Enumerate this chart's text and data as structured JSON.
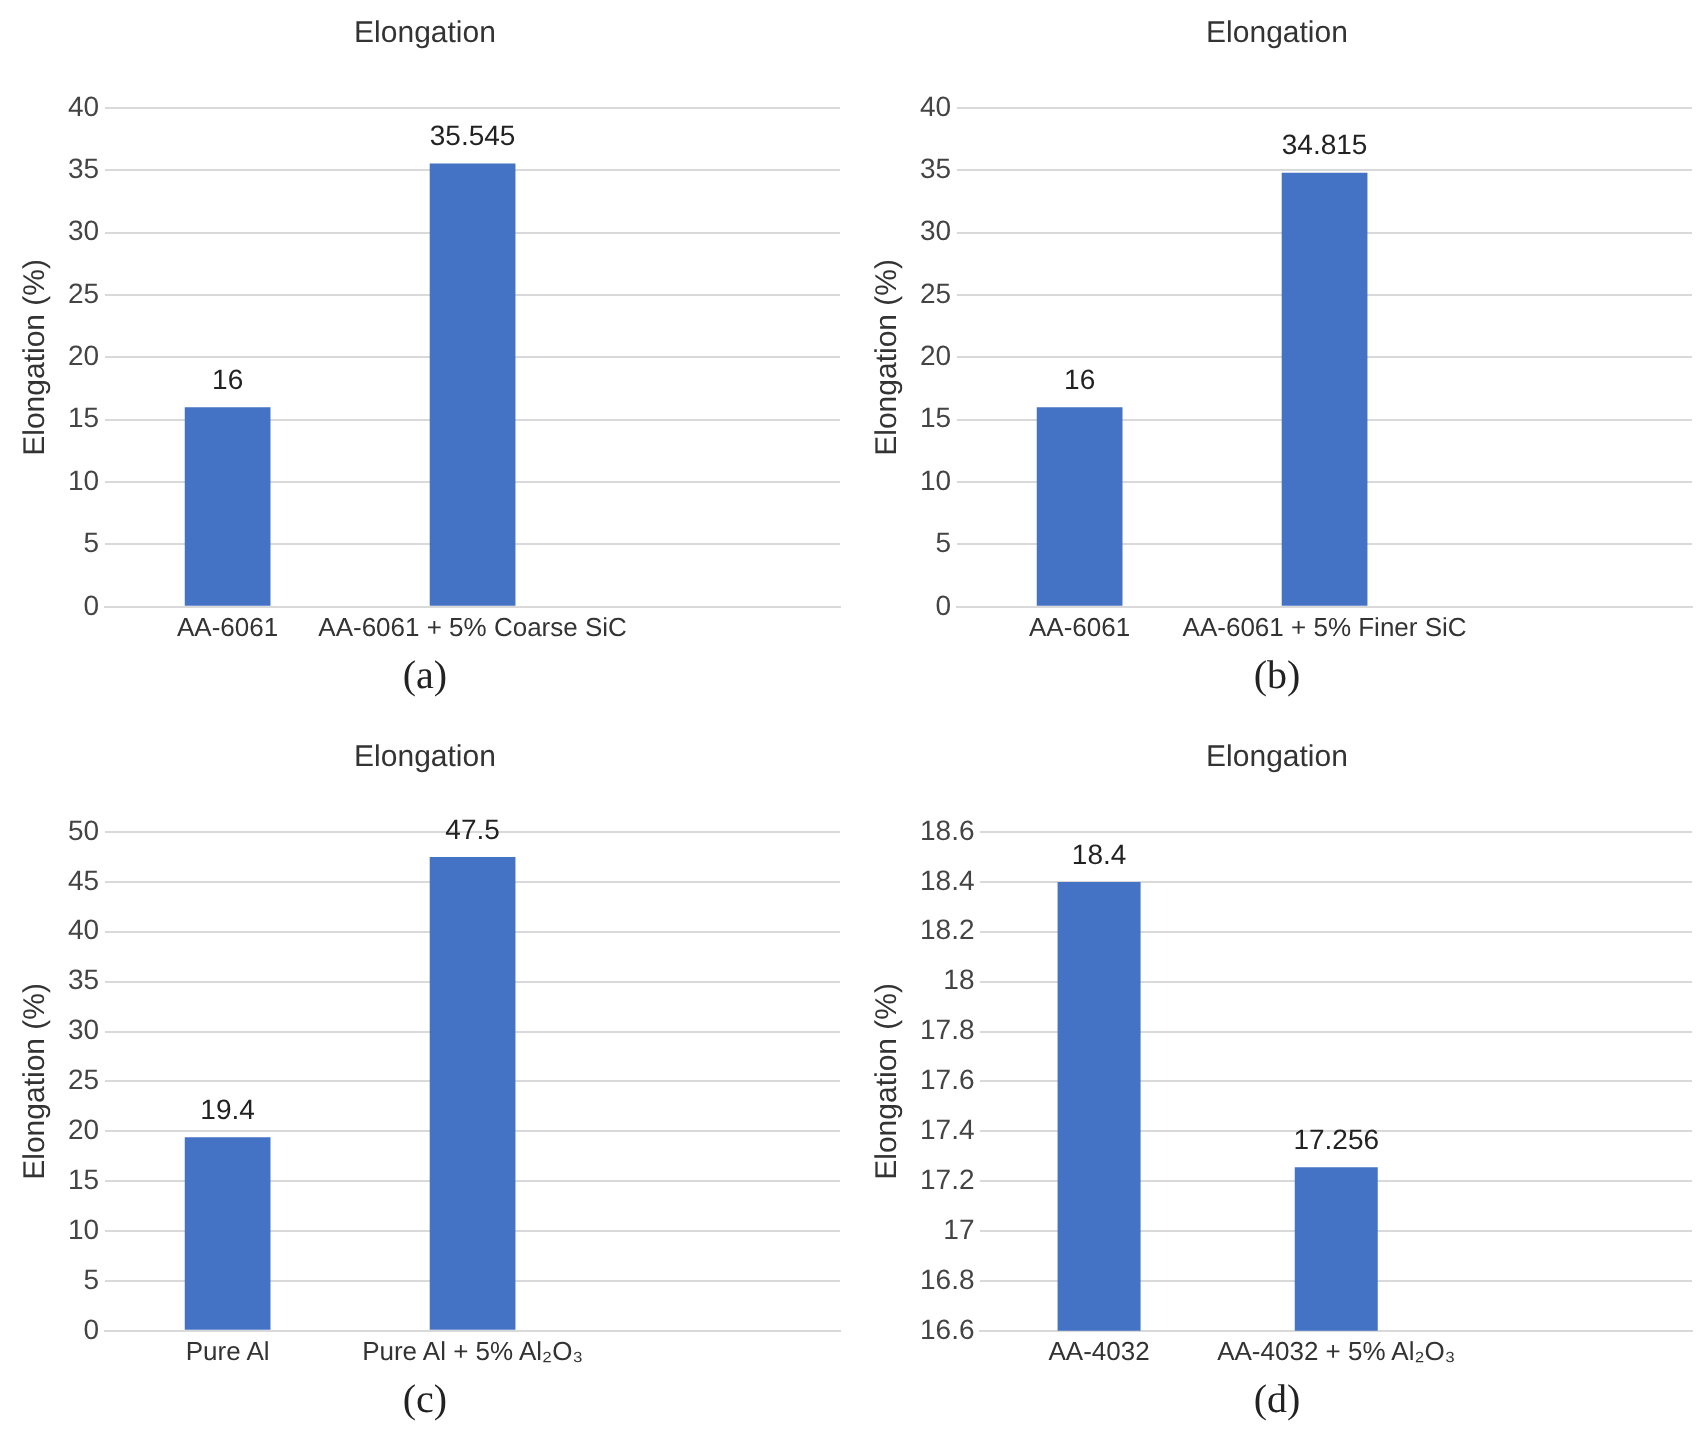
{
  "chart_data": [
    {
      "type": "bar",
      "title": "Elongation",
      "ylabel": "Elongation (%)",
      "categories": [
        "AA-6061",
        "AA-6061 + 5% Coarse SiC",
        null
      ],
      "values": [
        16,
        35.545,
        null
      ],
      "color": "#4472c4",
      "ylim": [
        0,
        40
      ],
      "yticks": [
        0,
        5,
        10,
        15,
        20,
        25,
        30,
        35,
        40
      ],
      "grid": "y",
      "data_labels": true,
      "annotations": [
        "(a)"
      ]
    },
    {
      "type": "bar",
      "title": "Elongation",
      "ylabel": "Elongation (%)",
      "categories": [
        "AA-6061",
        "AA-6061 + 5% Finer SiC",
        null
      ],
      "values": [
        16,
        34.815,
        null
      ],
      "color": "#4472c4",
      "ylim": [
        0,
        40
      ],
      "yticks": [
        0,
        5,
        10,
        15,
        20,
        25,
        30,
        35,
        40
      ],
      "grid": "y",
      "data_labels": true,
      "annotations": [
        "(b)"
      ]
    },
    {
      "type": "bar",
      "title": "Elongation",
      "ylabel": "Elongation (%)",
      "categories": [
        "Pure Al",
        "Pure Al + 5% Al₂O₃",
        null
      ],
      "values": [
        19.4,
        47.5,
        null
      ],
      "color": "#4472c4",
      "ylim": [
        0,
        50
      ],
      "yticks": [
        0,
        5,
        10,
        15,
        20,
        25,
        30,
        35,
        40,
        45,
        50
      ],
      "grid": "y",
      "data_labels": true,
      "annotations": [
        "(c)"
      ]
    },
    {
      "type": "bar",
      "title": "Elongation",
      "ylabel": "Elongation (%)",
      "categories": [
        "AA-4032",
        "AA-4032 + 5% Al₂O₃",
        null
      ],
      "values": [
        18.4,
        17.256,
        null
      ],
      "color": "#4472c4",
      "ylim": [
        16.6,
        18.6
      ],
      "yticks": [
        16.6,
        16.8,
        17,
        17.2,
        17.4,
        17.6,
        17.8,
        18,
        18.2,
        18.4,
        18.6
      ],
      "grid": "y",
      "data_labels": true,
      "annotations": [
        "(d)"
      ]
    }
  ]
}
